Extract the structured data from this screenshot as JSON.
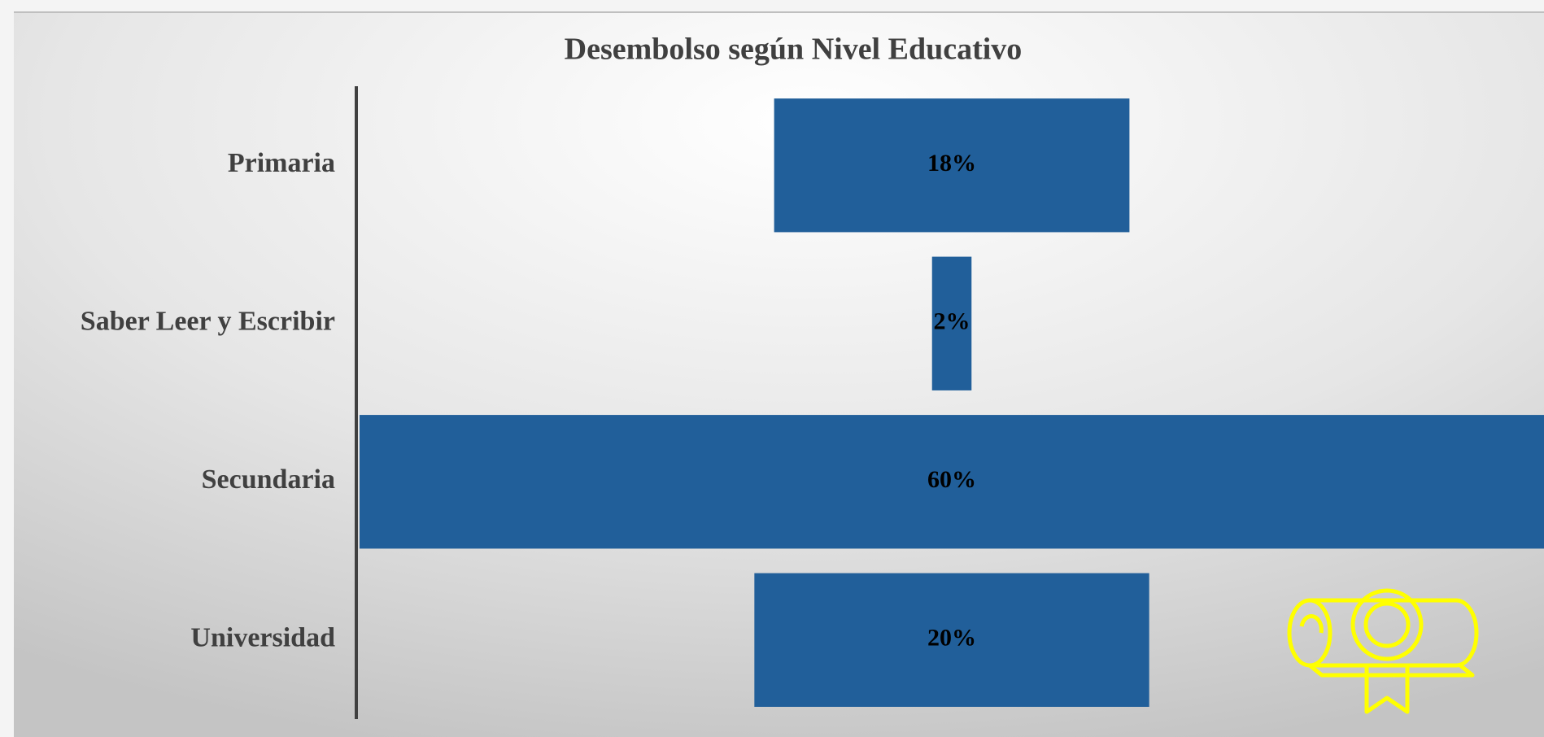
{
  "chart_data": {
    "type": "bar",
    "orientation": "horizontal",
    "title": "Desembolso según Nivel Educativo",
    "categories": [
      "Primaria",
      "Saber Leer y Escribir",
      "Secundaria",
      "Universidad"
    ],
    "values": [
      18,
      2,
      60,
      20
    ],
    "value_labels": [
      "18%",
      "2%",
      "60%",
      "20%"
    ],
    "color": "#215f9a"
  }
}
